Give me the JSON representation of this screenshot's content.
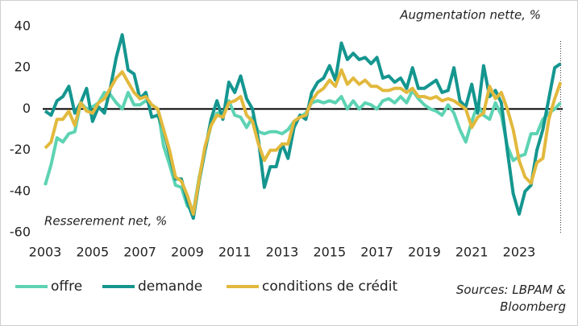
{
  "chart_data": {
    "type": "line",
    "annotations": {
      "top": "Augmentation nette, %",
      "bottom": "Resserement net, %",
      "source": "Sources: LBPAM & Bloomberg"
    },
    "x": [
      2003,
      2003.25,
      2003.5,
      2003.75,
      2004,
      2004.25,
      2004.5,
      2004.75,
      2005,
      2005.25,
      2005.5,
      2005.75,
      2006,
      2006.25,
      2006.5,
      2006.75,
      2007,
      2007.25,
      2007.5,
      2007.75,
      2008,
      2008.25,
      2008.5,
      2008.75,
      2009,
      2009.25,
      2009.5,
      2009.75,
      2010,
      2010.25,
      2010.5,
      2010.75,
      2011,
      2011.25,
      2011.5,
      2011.75,
      2012,
      2012.25,
      2012.5,
      2012.75,
      2013,
      2013.25,
      2013.5,
      2013.75,
      2014,
      2014.25,
      2014.5,
      2014.75,
      2015,
      2015.25,
      2015.5,
      2015.75,
      2016,
      2016.25,
      2016.5,
      2016.75,
      2017,
      2017.25,
      2017.5,
      2017.75,
      2018,
      2018.25,
      2018.5,
      2018.75,
      2019,
      2019.25,
      2019.5,
      2019.75,
      2020,
      2020.25,
      2020.5,
      2020.75,
      2021,
      2021.25,
      2021.5,
      2021.75,
      2022,
      2022.25,
      2022.5,
      2022.75,
      2023,
      2023.25,
      2023.5,
      2023.75,
      2024,
      2024.25,
      2024.5,
      2024.75
    ],
    "series": [
      {
        "name": "offre",
        "color": "#5dd3b3",
        "values": [
          -37,
          -27,
          -14,
          -16,
          -12,
          -11,
          3,
          0,
          1,
          3,
          8,
          7,
          3,
          0,
          8,
          2,
          2,
          4,
          2,
          0,
          -18,
          -27,
          -37,
          -38,
          -47,
          -50,
          -33,
          -20,
          -8,
          -2,
          -2,
          4,
          -3,
          -4,
          -9,
          -4,
          -11,
          -12,
          -11,
          -11,
          -12,
          -10,
          -6,
          -4,
          -2,
          3,
          4,
          3,
          4,
          3,
          6,
          0,
          4,
          0,
          3,
          2,
          0,
          4,
          5,
          3,
          6,
          3,
          9,
          5,
          2,
          0,
          -1,
          -3,
          2,
          -2,
          -10,
          -16,
          -6,
          2,
          -3,
          -5,
          3,
          -3,
          -18,
          -25,
          -23,
          -22,
          -12,
          -12,
          -5,
          -2,
          0,
          3
        ]
      },
      {
        "name": "demande",
        "color": "#14968f",
        "values": [
          -1,
          -3,
          4,
          6,
          11,
          -2,
          3,
          10,
          -6,
          1,
          -2,
          10,
          25,
          36,
          19,
          17,
          5,
          8,
          -4,
          -3,
          -10,
          -22,
          -34,
          -34,
          -45,
          -53,
          -35,
          -20,
          -5,
          4,
          -5,
          13,
          8,
          16,
          5,
          0,
          -15,
          -38,
          -28,
          -28,
          -17,
          -24,
          -9,
          -3,
          -5,
          8,
          13,
          15,
          21,
          14,
          32,
          24,
          27,
          24,
          25,
          22,
          25,
          15,
          16,
          13,
          15,
          10,
          20,
          10,
          10,
          12,
          14,
          8,
          9,
          20,
          4,
          1,
          12,
          -2,
          21,
          6,
          9,
          3,
          -20,
          -41,
          -51,
          -40,
          -37,
          -20,
          -10,
          5,
          20,
          22
        ]
      },
      {
        "name": "conditions de crédit",
        "color": "#e2b93d",
        "values": [
          -19,
          -16,
          -5,
          -5,
          -1,
          -8,
          3,
          -1,
          -2,
          3,
          5,
          10,
          15,
          18,
          13,
          8,
          5,
          6,
          2,
          0,
          -10,
          -20,
          -33,
          -35,
          -42,
          -51,
          -34,
          -18,
          -8,
          -3,
          -4,
          3,
          4,
          6,
          -3,
          -6,
          -17,
          -25,
          -20,
          -20,
          -17,
          -17,
          -6,
          -4,
          -3,
          4,
          8,
          10,
          14,
          11,
          19,
          12,
          15,
          12,
          14,
          11,
          11,
          9,
          9,
          10,
          10,
          8,
          10,
          6,
          6,
          5,
          6,
          4,
          5,
          4,
          2,
          0,
          -9,
          -4,
          -2,
          11,
          5,
          8,
          0,
          -10,
          -25,
          -33,
          -36,
          -26,
          -24,
          -5,
          5,
          13
        ]
      }
    ],
    "xlim": [
      2003,
      2025
    ],
    "xticks": [
      2003,
      2005,
      2007,
      2009,
      2011,
      2013,
      2015,
      2017,
      2019,
      2021,
      2023
    ],
    "ylim": [
      -60,
      40
    ],
    "yticks": [
      -60,
      -40,
      -20,
      0,
      20,
      40
    ]
  }
}
